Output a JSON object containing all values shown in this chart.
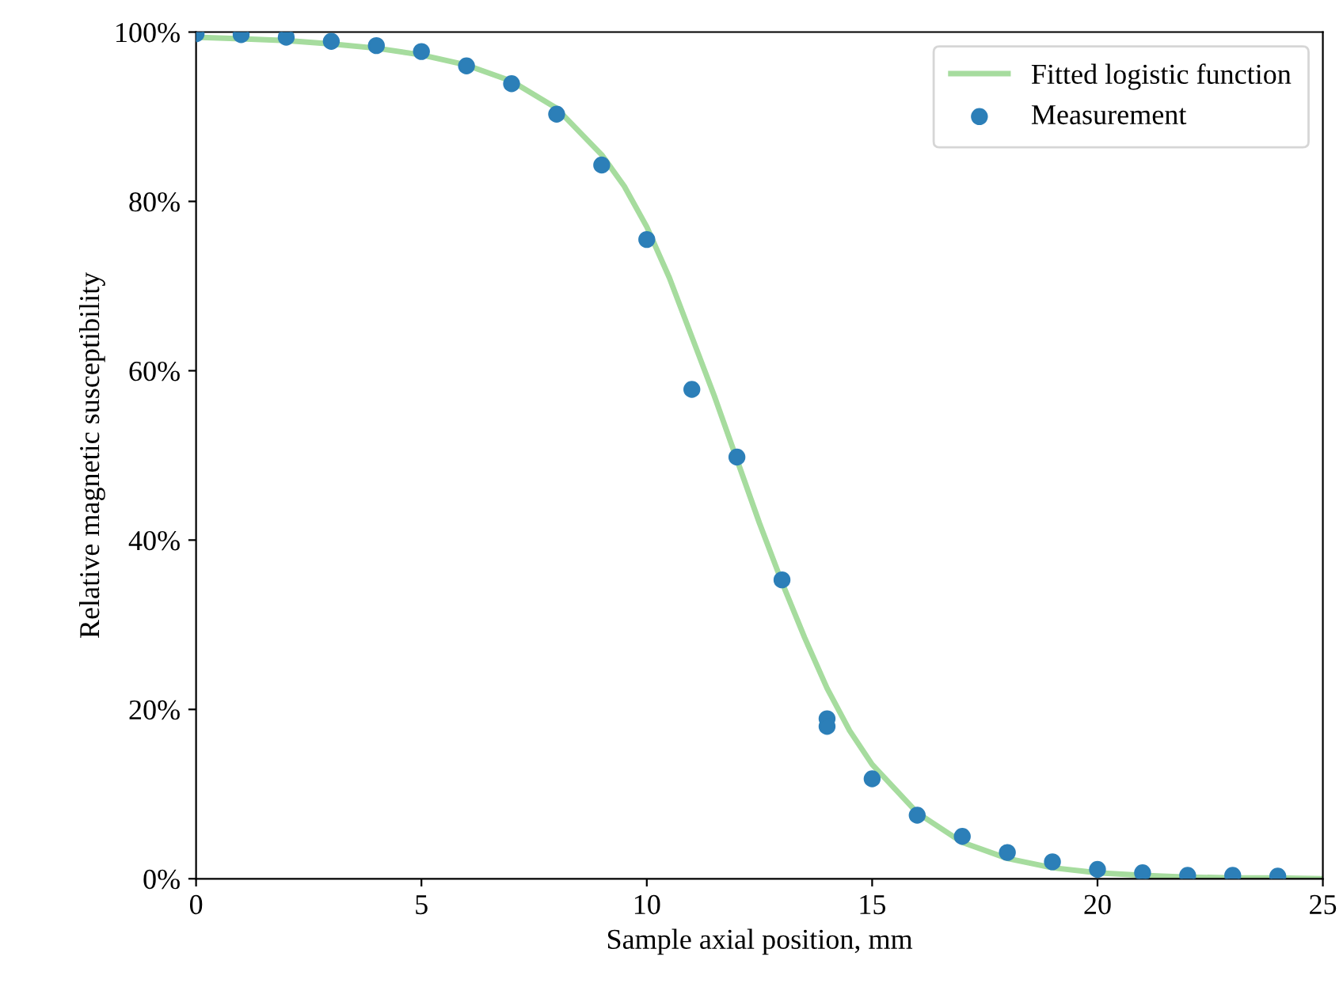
{
  "chart_data": {
    "type": "scatter",
    "xlabel": "Sample axial position, mm",
    "ylabel": "Relative magnetic susceptibility",
    "xlim": [
      0,
      25
    ],
    "xticks": [
      0,
      5,
      10,
      15,
      20,
      25
    ],
    "ylim": [
      0,
      100
    ],
    "yticks": [
      {
        "value": 0,
        "label": "0%"
      },
      {
        "value": 20,
        "label": "20%"
      },
      {
        "value": 40,
        "label": "40%"
      },
      {
        "value": 60,
        "label": "60%"
      },
      {
        "value": 80,
        "label": "80%"
      },
      {
        "value": 100,
        "label": "100%"
      }
    ],
    "grid": false,
    "legend": "top right",
    "series": [
      {
        "name": "Fitted logistic function",
        "type": "line",
        "color": "#a6dc9e",
        "line_style": "solid",
        "marker": "none",
        "x": [
          0,
          1,
          2,
          3,
          4,
          5,
          6,
          7,
          8,
          9,
          9.5,
          10,
          10.5,
          11,
          11.5,
          12,
          12.5,
          13,
          13.5,
          14,
          14.5,
          15,
          16,
          17,
          18,
          19,
          20,
          21,
          22,
          23,
          24,
          25
        ],
        "values": [
          99.4,
          99.2,
          99.0,
          98.6,
          98.1,
          97.3,
          96.1,
          94.2,
          91.0,
          85.5,
          81.8,
          77,
          71,
          64,
          57,
          49.5,
          42,
          35,
          28.5,
          22.5,
          17.5,
          13.5,
          7.8,
          4.3,
          2.4,
          1.3,
          0.7,
          0.4,
          0.2,
          0.1,
          0.1,
          0
        ]
      },
      {
        "name": "Measurement",
        "color": "#2c7fb8",
        "marker": "circle",
        "x": [
          0,
          1,
          2,
          3,
          4,
          5,
          6,
          7,
          8,
          9,
          10,
          11,
          12,
          13,
          14,
          14,
          15,
          16,
          17,
          18,
          19,
          20,
          21,
          22,
          23,
          24
        ],
        "values": [
          99.8,
          99.7,
          99.4,
          98.9,
          98.4,
          97.7,
          96.0,
          93.9,
          90.3,
          84.3,
          75.5,
          57.8,
          49.8,
          35.3,
          18.9,
          18.0,
          11.8,
          7.5,
          5.0,
          3.1,
          2.0,
          1.1,
          0.7,
          0.4,
          0.4,
          0.3
        ]
      }
    ]
  }
}
